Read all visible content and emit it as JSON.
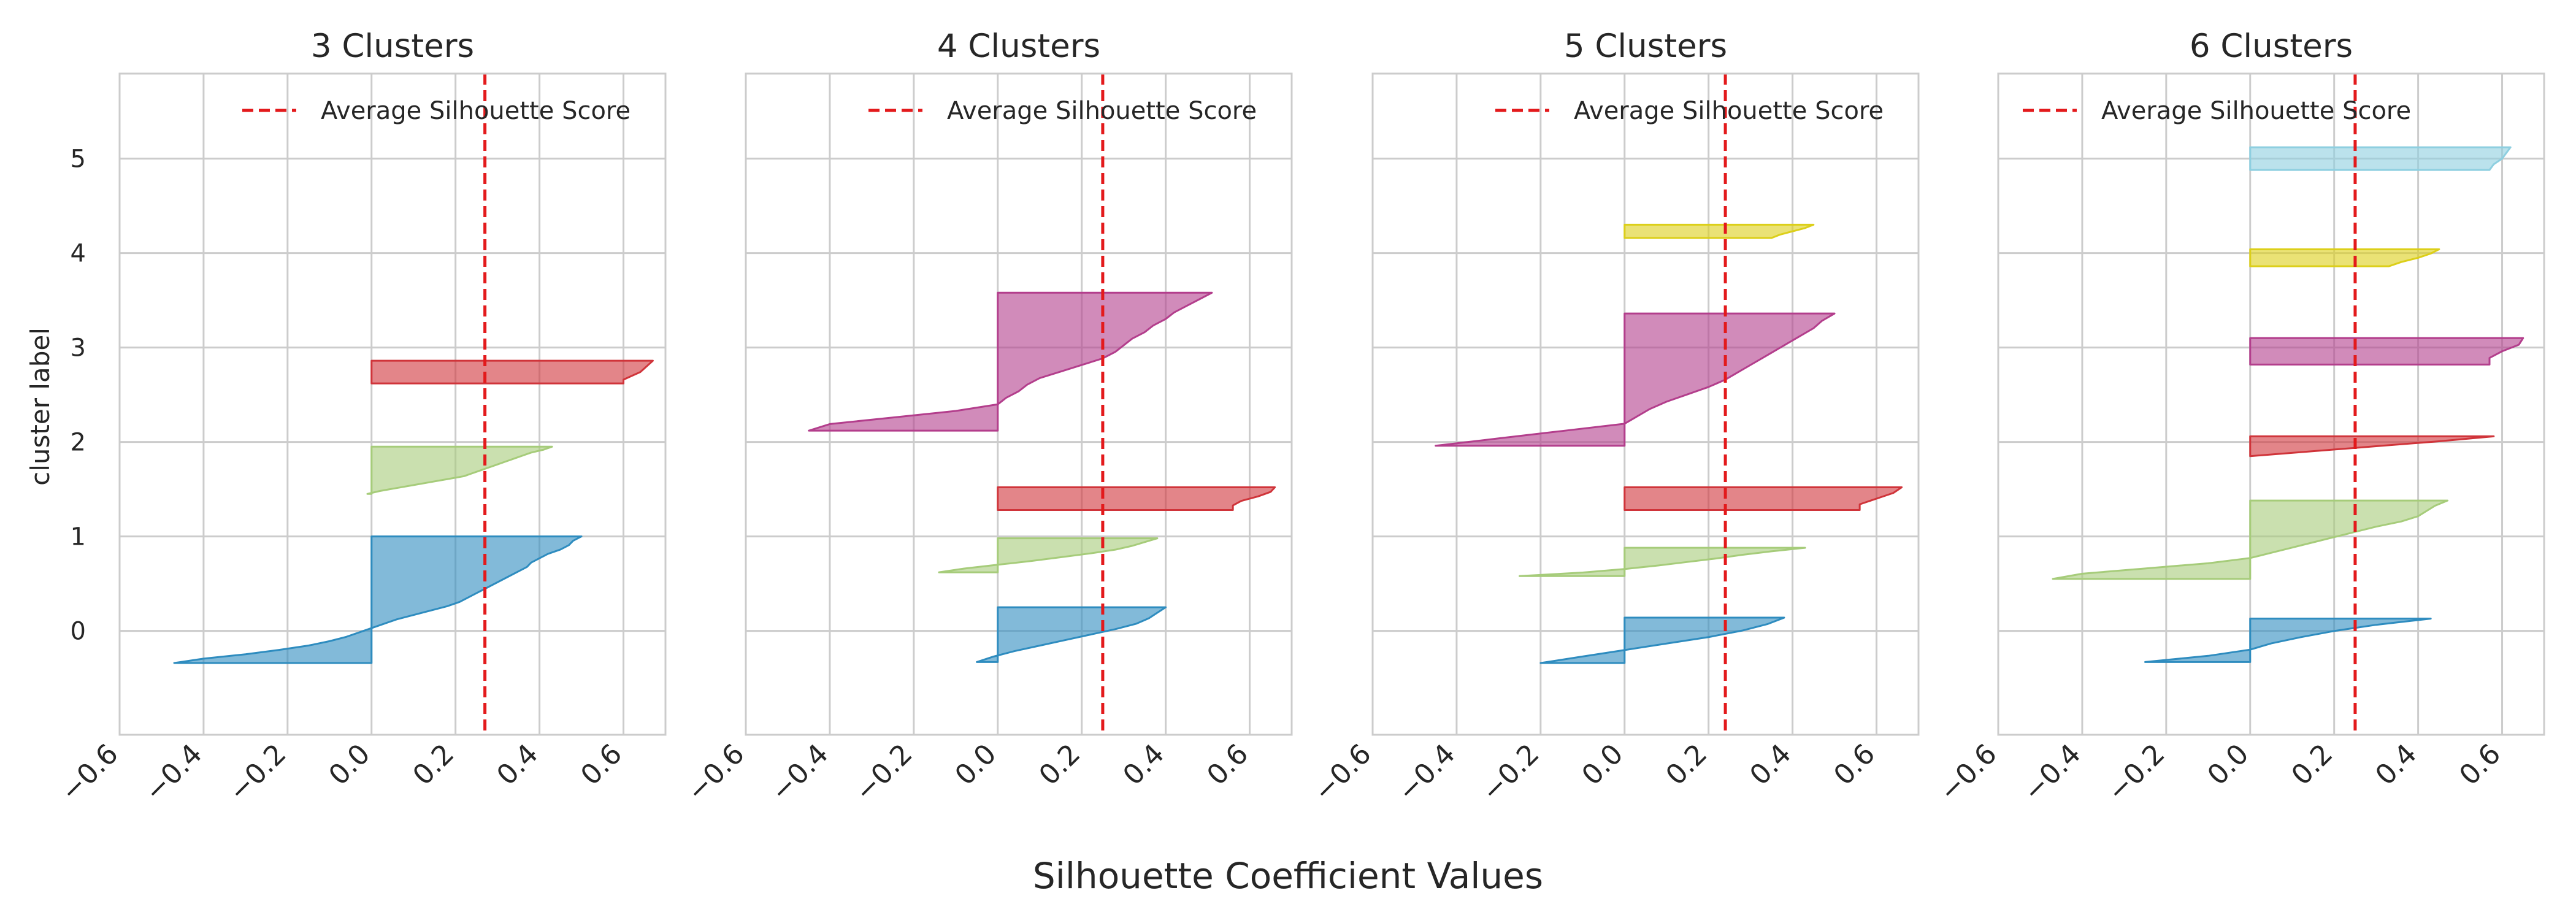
{
  "figure": {
    "xlabel": "Silhouette Coefficient Values",
    "ylabel": "cluster label"
  },
  "colors": {
    "average_line": "#e31a1c",
    "grid": "#cccccc",
    "frame": "#cccccc",
    "cluster_palette": [
      "#2e8cbf",
      "#a6cc7a",
      "#d0343a",
      "#b33e8c",
      "#dccf19",
      "#8ecfe0"
    ]
  },
  "chart_data": [
    {
      "type": "area",
      "title": "3 Clusters",
      "legend": "Average Silhouette Score",
      "legend_position": "top-right",
      "grid": true,
      "xlim": [
        -0.6,
        0.7
      ],
      "x_ticks": [
        "−0.6",
        "−0.4",
        "−0.2",
        "0.0",
        "0.2",
        "0.4",
        "0.6"
      ],
      "x_tick_values": [
        -0.6,
        -0.4,
        -0.2,
        0.0,
        0.2,
        0.4,
        0.6
      ],
      "y_ticks": [
        "0",
        "1",
        "2",
        "3",
        "4",
        "5"
      ],
      "y_tick_values": [
        0,
        1,
        2,
        3,
        4,
        5
      ],
      "show_ylabel": true,
      "show_yticks": true,
      "average_score": 0.27,
      "clusters": [
        {
          "label": 0,
          "color_index": 0,
          "y_bottom": -0.34,
          "y_top": 1.0,
          "values": [
            0.5,
            0.48,
            0.47,
            0.45,
            0.42,
            0.4,
            0.38,
            0.37,
            0.35,
            0.33,
            0.31,
            0.29,
            0.27,
            0.25,
            0.23,
            0.21,
            0.18,
            0.14,
            0.1,
            0.06,
            0.03,
            0.0,
            -0.03,
            -0.06,
            -0.1,
            -0.15,
            -0.22,
            -0.3,
            -0.4,
            -0.47
          ]
        },
        {
          "label": 1,
          "color_index": 1,
          "y_bottom": 1.45,
          "y_top": 1.95,
          "values": [
            0.43,
            0.41,
            0.38,
            0.36,
            0.34,
            0.32,
            0.3,
            0.28,
            0.26,
            0.24,
            0.22,
            0.18,
            0.14,
            0.1,
            0.06,
            0.02,
            -0.01
          ]
        },
        {
          "label": 2,
          "color_index": 2,
          "y_bottom": 2.62,
          "y_top": 2.86,
          "values": [
            0.67,
            0.66,
            0.65,
            0.64,
            0.62,
            0.6,
            0.6
          ]
        }
      ]
    },
    {
      "type": "area",
      "title": "4 Clusters",
      "legend": "Average Silhouette Score",
      "legend_position": "top-right",
      "grid": true,
      "xlim": [
        -0.6,
        0.7
      ],
      "x_ticks": [
        "−0.6",
        "−0.4",
        "−0.2",
        "0.0",
        "0.2",
        "0.4",
        "0.6"
      ],
      "x_tick_values": [
        -0.6,
        -0.4,
        -0.2,
        0.0,
        0.2,
        0.4,
        0.6
      ],
      "y_ticks": [
        "0",
        "1",
        "2",
        "3",
        "4",
        "5"
      ],
      "y_tick_values": [
        0,
        1,
        2,
        3,
        4,
        5
      ],
      "show_ylabel": false,
      "show_yticks": false,
      "average_score": 0.25,
      "clusters": [
        {
          "label": 0,
          "color_index": 0,
          "y_bottom": -0.33,
          "y_top": 0.25,
          "values": [
            0.4,
            0.38,
            0.36,
            0.33,
            0.28,
            0.22,
            0.16,
            0.1,
            0.04,
            -0.01,
            -0.05
          ]
        },
        {
          "label": 1,
          "color_index": 1,
          "y_bottom": 0.62,
          "y_top": 0.98,
          "values": [
            0.38,
            0.35,
            0.32,
            0.28,
            0.22,
            0.15,
            0.08,
            0.0,
            -0.08,
            -0.14
          ]
        },
        {
          "label": 2,
          "color_index": 2,
          "y_bottom": 1.28,
          "y_top": 1.52,
          "values": [
            0.66,
            0.65,
            0.62,
            0.58,
            0.56,
            0.56
          ]
        },
        {
          "label": 3,
          "color_index": 3,
          "y_bottom": 2.12,
          "y_top": 3.58,
          "values": [
            0.51,
            0.48,
            0.45,
            0.42,
            0.4,
            0.37,
            0.35,
            0.32,
            0.3,
            0.28,
            0.25,
            0.2,
            0.15,
            0.1,
            0.07,
            0.05,
            0.02,
            0.0,
            -0.1,
            -0.25,
            -0.4,
            -0.45
          ]
        }
      ]
    },
    {
      "type": "area",
      "title": "5 Clusters",
      "legend": "Average Silhouette Score",
      "legend_position": "top-right",
      "grid": true,
      "xlim": [
        -0.6,
        0.7
      ],
      "x_ticks": [
        "−0.6",
        "−0.4",
        "−0.2",
        "0.0",
        "0.2",
        "0.4",
        "0.6"
      ],
      "x_tick_values": [
        -0.6,
        -0.4,
        -0.2,
        0.0,
        0.2,
        0.4,
        0.6
      ],
      "y_ticks": [
        "0",
        "1",
        "2",
        "3",
        "4",
        "5"
      ],
      "y_tick_values": [
        0,
        1,
        2,
        3,
        4,
        5
      ],
      "show_ylabel": false,
      "show_yticks": false,
      "average_score": 0.24,
      "clusters": [
        {
          "label": 0,
          "color_index": 0,
          "y_bottom": -0.34,
          "y_top": 0.14,
          "values": [
            0.38,
            0.34,
            0.28,
            0.2,
            0.1,
            0.0,
            -0.1,
            -0.2
          ]
        },
        {
          "label": 1,
          "color_index": 1,
          "y_bottom": 0.58,
          "y_top": 0.88,
          "values": [
            0.43,
            0.35,
            0.28,
            0.22,
            0.15,
            0.08,
            0.0,
            -0.1,
            -0.25
          ]
        },
        {
          "label": 2,
          "color_index": 2,
          "y_bottom": 1.28,
          "y_top": 1.52,
          "values": [
            0.66,
            0.64,
            0.6,
            0.56,
            0.56
          ]
        },
        {
          "label": 3,
          "color_index": 3,
          "y_bottom": 1.96,
          "y_top": 3.36,
          "values": [
            0.5,
            0.47,
            0.45,
            0.42,
            0.39,
            0.36,
            0.33,
            0.3,
            0.27,
            0.24,
            0.2,
            0.15,
            0.1,
            0.06,
            0.03,
            0.0,
            -0.15,
            -0.3,
            -0.45
          ]
        },
        {
          "label": 4,
          "color_index": 4,
          "y_bottom": 4.16,
          "y_top": 4.3,
          "values": [
            0.45,
            0.43,
            0.4,
            0.37,
            0.35
          ]
        }
      ]
    },
    {
      "type": "area",
      "title": "6 Clusters",
      "legend": "Average Silhouette Score",
      "legend_position": "top-left",
      "grid": true,
      "xlim": [
        -0.6,
        0.7
      ],
      "x_ticks": [
        "−0.6",
        "−0.4",
        "−0.2",
        "0.0",
        "0.2",
        "0.4",
        "0.6"
      ],
      "x_tick_values": [
        -0.6,
        -0.4,
        -0.2,
        0.0,
        0.2,
        0.4,
        0.6
      ],
      "y_ticks": [
        "0",
        "1",
        "2",
        "3",
        "4",
        "5"
      ],
      "y_tick_values": [
        0,
        1,
        2,
        3,
        4,
        5
      ],
      "show_ylabel": false,
      "show_yticks": false,
      "average_score": 0.25,
      "clusters": [
        {
          "label": 0,
          "color_index": 0,
          "y_bottom": -0.33,
          "y_top": 0.13,
          "values": [
            0.43,
            0.3,
            0.2,
            0.12,
            0.05,
            0.0,
            -0.1,
            -0.25
          ]
        },
        {
          "label": 1,
          "color_index": 1,
          "y_bottom": 0.55,
          "y_top": 1.38,
          "values": [
            0.47,
            0.44,
            0.42,
            0.4,
            0.36,
            0.3,
            0.25,
            0.2,
            0.15,
            0.1,
            0.05,
            0.0,
            -0.1,
            -0.25,
            -0.4,
            -0.47
          ]
        },
        {
          "label": 2,
          "color_index": 2,
          "y_bottom": 1.85,
          "y_top": 2.06,
          "values": [
            0.58,
            0.45,
            0.3,
            0.15,
            0.0
          ]
        },
        {
          "label": 3,
          "color_index": 3,
          "y_bottom": 2.82,
          "y_top": 3.1,
          "values": [
            0.65,
            0.64,
            0.6,
            0.57,
            0.57
          ]
        },
        {
          "label": 4,
          "color_index": 4,
          "y_bottom": 3.86,
          "y_top": 4.04,
          "values": [
            0.45,
            0.43,
            0.4,
            0.36,
            0.33
          ]
        },
        {
          "label": 5,
          "color_index": 5,
          "y_bottom": 4.88,
          "y_top": 5.12,
          "values": [
            0.62,
            0.61,
            0.6,
            0.58,
            0.57
          ]
        }
      ]
    }
  ]
}
